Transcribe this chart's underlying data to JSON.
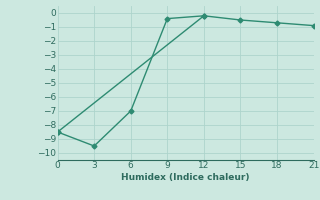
{
  "line1_x": [
    0,
    3,
    6,
    9,
    12
  ],
  "line1_y": [
    -8.5,
    -9.5,
    -7.0,
    -0.4,
    -0.2
  ],
  "line2_x": [
    0,
    12,
    15,
    18,
    21
  ],
  "line2_y": [
    -8.5,
    -0.2,
    -0.5,
    -0.7,
    -0.9
  ],
  "line_color": "#2e8b72",
  "bg_color": "#cce8e0",
  "grid_color": "#aed4cc",
  "xlabel": "Humidex (Indice chaleur)",
  "xlim": [
    0,
    21
  ],
  "ylim": [
    -10.5,
    0.5
  ],
  "xticks": [
    0,
    3,
    6,
    9,
    12,
    15,
    18,
    21
  ],
  "yticks": [
    0,
    -1,
    -2,
    -3,
    -4,
    -5,
    -6,
    -7,
    -8,
    -9,
    -10
  ],
  "marker": "D",
  "marker_size": 2.5,
  "linewidth": 1.0,
  "font_size": 6.5,
  "font_color": "#2e6b5e"
}
